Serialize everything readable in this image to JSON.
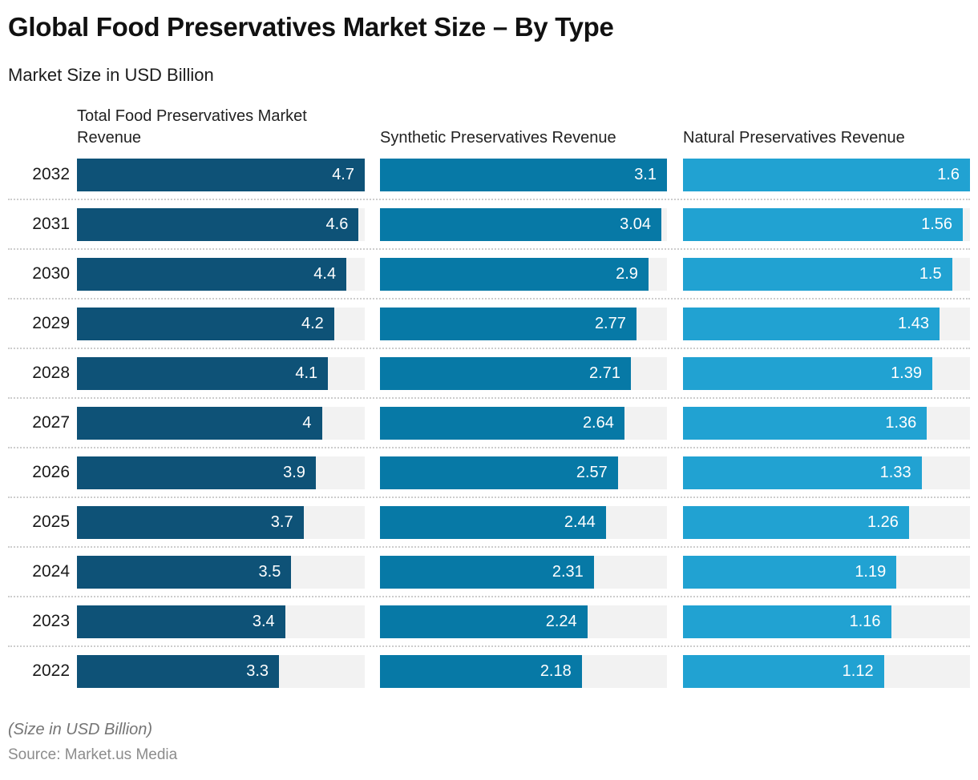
{
  "header": {
    "title": "Global Food Preservatives Market Size – By Type",
    "subtitle": "Market Size in USD Billion"
  },
  "footer": {
    "note": "(Size in USD Billion)",
    "source": "Source: Market.us Media"
  },
  "colors": {
    "total_bar": "#0e5277",
    "synthetic_bar": "#0779a6",
    "natural_bar": "#21a2d2",
    "track": "#f2f2f2",
    "separator": "#cdcdcd",
    "value_text": "#ffffff"
  },
  "chart_data": {
    "type": "bar",
    "orientation": "horizontal",
    "title": "Global Food Preservatives Market Size – By Type",
    "subtitle": "Market Size in USD Billion",
    "unit": "USD Billion",
    "grid": false,
    "legend_position": "column-headers-top",
    "categories": [
      "2032",
      "2031",
      "2030",
      "2029",
      "2028",
      "2027",
      "2026",
      "2025",
      "2024",
      "2023",
      "2022"
    ],
    "series": [
      {
        "name": "Total Food Preservatives Market Revenue",
        "color": "#0e5277",
        "axis_max": 4.7,
        "values": [
          4.7,
          4.6,
          4.4,
          4.2,
          4.1,
          4,
          3.9,
          3.7,
          3.5,
          3.4,
          3.3
        ]
      },
      {
        "name": "Synthetic Preservatives Revenue",
        "color": "#0779a6",
        "axis_max": 3.1,
        "values": [
          3.1,
          3.04,
          2.9,
          2.77,
          2.71,
          2.64,
          2.57,
          2.44,
          2.31,
          2.24,
          2.18
        ]
      },
      {
        "name": "Natural Preservatives Revenue",
        "color": "#21a2d2",
        "axis_max": 1.6,
        "values": [
          1.6,
          1.56,
          1.5,
          1.43,
          1.39,
          1.36,
          1.33,
          1.26,
          1.19,
          1.16,
          1.12
        ]
      }
    ]
  }
}
